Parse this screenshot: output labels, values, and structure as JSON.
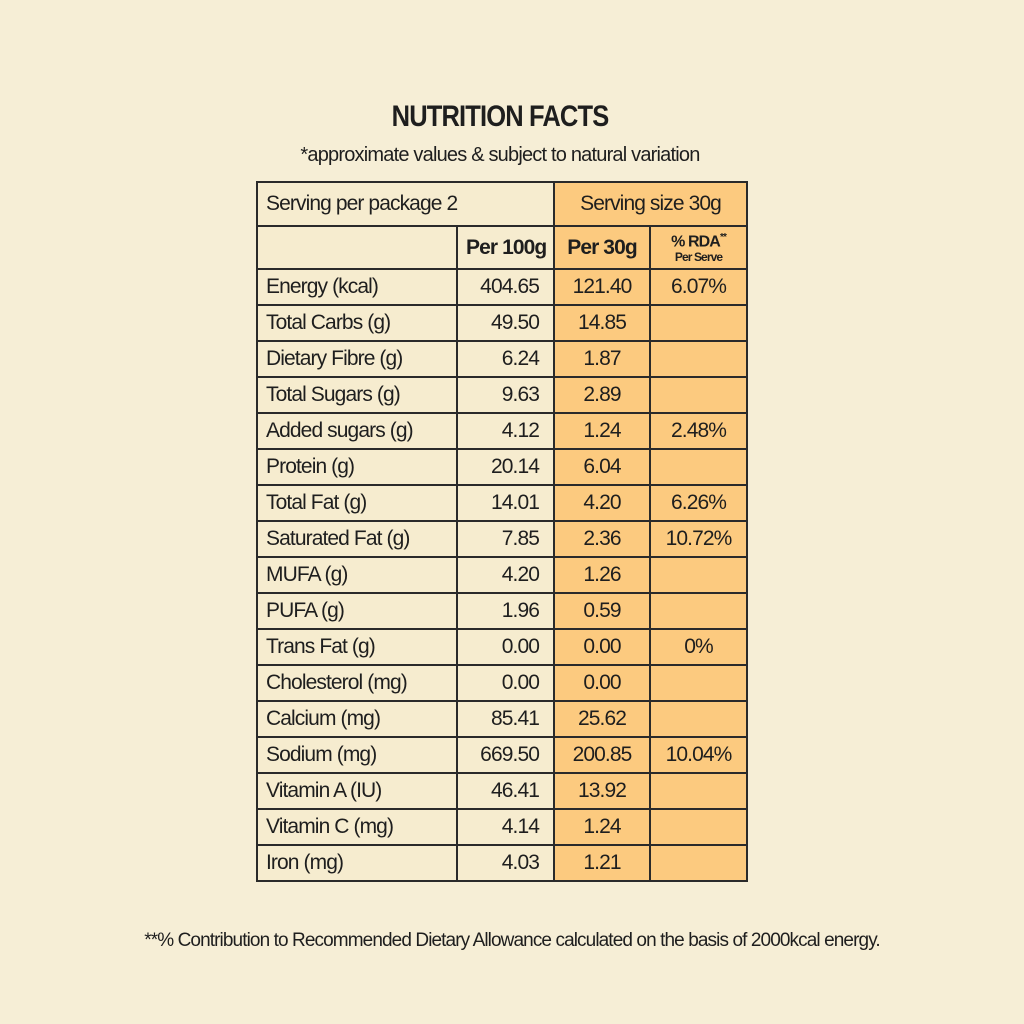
{
  "header": {
    "title": "NUTRITION FACTS",
    "subtitle": "*approximate values & subject to natural variation"
  },
  "table": {
    "serving_per_package": "Serving per package 2",
    "serving_size": "Serving size 30g",
    "columns": {
      "per100": "Per 100g",
      "per30": "Per 30g",
      "rda": "% RDA",
      "rda_mark": "**",
      "rda_sub": "Per Serve"
    },
    "rows": [
      [
        "Energy (kcal)",
        "404.65",
        "121.40",
        "6.07%"
      ],
      [
        "Total Carbs (g)",
        "49.50",
        "14.85"
      ],
      [
        "Dietary Fibre (g)",
        "6.24",
        "1.87"
      ],
      [
        "Total Sugars (g)",
        "9.63",
        "2.89"
      ],
      [
        "Added sugars (g)",
        "4.12",
        "1.24",
        "2.48%"
      ],
      [
        "Protein (g)",
        "20.14",
        "6.04"
      ],
      [
        "Total Fat (g)",
        "14.01",
        "4.20",
        "6.26%"
      ],
      [
        "Saturated Fat (g)",
        "7.85",
        "2.36",
        "10.72%"
      ],
      [
        "MUFA (g)",
        "4.20",
        "1.26"
      ],
      [
        "PUFA (g)",
        "1.96",
        "0.59"
      ],
      [
        "Trans Fat (g)",
        "0.00",
        "0.00",
        "0%"
      ],
      [
        "Cholesterol (mg)",
        "0.00",
        "0.00"
      ],
      [
        "Calcium (mg)",
        "85.41",
        "25.62"
      ],
      [
        "Sodium (mg)",
        "669.50",
        "200.85",
        "10.04%"
      ],
      [
        "Vitamin A (IU)",
        "46.41",
        "13.92"
      ],
      [
        "Vitamin C (mg)",
        "4.14",
        "1.24"
      ],
      [
        "Iron (mg)",
        "4.03",
        "1.21"
      ]
    ]
  },
  "footnote": "**% Contribution to Recommended Dietary Allowance calculated on the basis of 2000kcal energy."
}
